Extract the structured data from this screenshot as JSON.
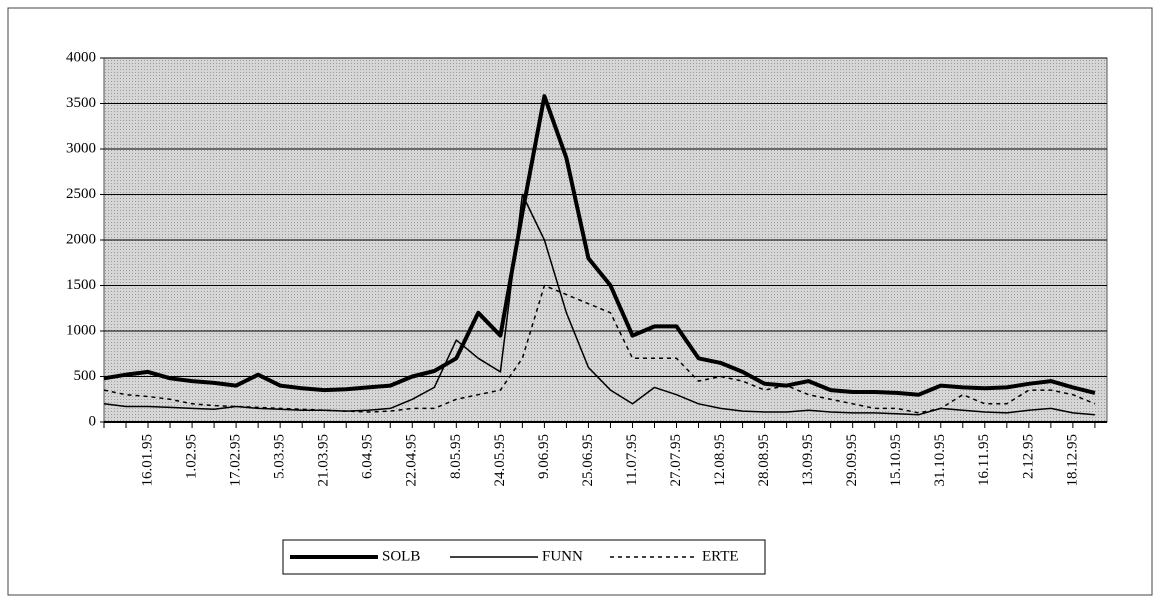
{
  "chart_data": {
    "type": "line",
    "categories": [
      null,
      null,
      "16.01.95",
      null,
      "1.02.95",
      null,
      "17.02.95",
      null,
      "5.03.95",
      null,
      "21.03.95",
      null,
      "6.04.95",
      null,
      "22.04.95",
      null,
      "8.05.95",
      null,
      "24.05.95",
      null,
      "9.06.95",
      null,
      "25.06.95",
      null,
      "11.07.95",
      null,
      "27.07.95",
      null,
      "12.08.95",
      null,
      "28.08.95",
      null,
      "13.09.95",
      null,
      "29.09.95",
      null,
      "15.10.95",
      null,
      "31.10.95",
      null,
      "16.11.95",
      null,
      "2.12.95",
      null,
      "18.12.95",
      null
    ],
    "series": [
      {
        "name": "SOLB",
        "color": "#000000",
        "style": "thick",
        "values": [
          480,
          520,
          550,
          480,
          450,
          430,
          400,
          520,
          400,
          370,
          350,
          360,
          380,
          400,
          500,
          560,
          700,
          1200,
          950,
          2300,
          3580,
          2900,
          1800,
          1500,
          950,
          1050,
          1050,
          700,
          650,
          550,
          420,
          400,
          450,
          350,
          330,
          330,
          320,
          300,
          400,
          380,
          370,
          380,
          420,
          450,
          380,
          320
        ]
      },
      {
        "name": "FUNN",
        "color": "#000000",
        "style": "thin",
        "values": [
          200,
          170,
          170,
          160,
          150,
          140,
          170,
          150,
          140,
          130,
          130,
          120,
          130,
          150,
          250,
          380,
          900,
          700,
          550,
          2500,
          2000,
          1200,
          600,
          350,
          200,
          380,
          300,
          200,
          150,
          120,
          110,
          110,
          130,
          110,
          100,
          100,
          90,
          80,
          150,
          130,
          110,
          100,
          130,
          150,
          100,
          80
        ]
      },
      {
        "name": "ERTE",
        "color": "#000000",
        "style": "dashed",
        "values": [
          350,
          300,
          280,
          250,
          200,
          180,
          170,
          160,
          150,
          140,
          130,
          120,
          110,
          120,
          150,
          150,
          250,
          300,
          350,
          700,
          1500,
          1400,
          1300,
          1200,
          700,
          700,
          700,
          450,
          500,
          450,
          350,
          400,
          300,
          250,
          200,
          150,
          150,
          100,
          150,
          300,
          200,
          200,
          350,
          350,
          300,
          200
        ]
      }
    ],
    "ylim": [
      0,
      4000
    ],
    "yticks": [
      0,
      500,
      1000,
      1500,
      2000,
      2500,
      3000,
      3500,
      4000
    ],
    "grid": true
  }
}
